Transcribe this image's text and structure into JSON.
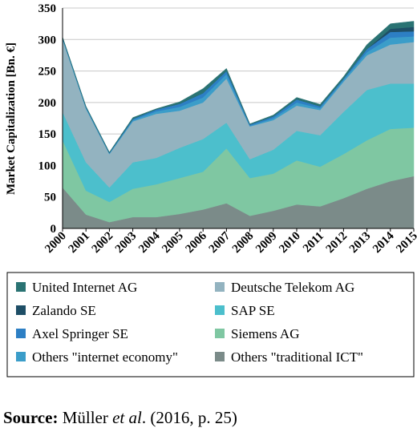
{
  "chart_data": {
    "type": "stacked-area",
    "y_label": "Market Capitalization [Bn. €]",
    "categories": [
      "2000",
      "2001",
      "2002",
      "2003",
      "2004",
      "2005",
      "2006",
      "2007",
      "2008",
      "2009",
      "2010",
      "2011",
      "2012",
      "2013",
      "2014",
      "2015"
    ],
    "ylim": [
      0,
      350
    ],
    "yticks": [
      0,
      50,
      100,
      150,
      200,
      250,
      300,
      350
    ],
    "grid": true,
    "series": [
      {
        "name": "Others \"traditional ICT\"",
        "color": "#7b8b89",
        "values": [
          65,
          22,
          10,
          18,
          18,
          23,
          30,
          40,
          20,
          28,
          38,
          35,
          48,
          63,
          75,
          83
        ]
      },
      {
        "name": "Siemens AG",
        "color": "#7fc7a2",
        "values": [
          75,
          38,
          32,
          45,
          52,
          57,
          60,
          87,
          60,
          59,
          70,
          63,
          70,
          77,
          83,
          77
        ]
      },
      {
        "name": "SAP SE",
        "color": "#4cbfcc",
        "values": [
          45,
          45,
          23,
          42,
          42,
          48,
          52,
          41,
          30,
          38,
          47,
          50,
          67,
          80,
          72,
          70
        ]
      },
      {
        "name": "Deutsche Telekom AG",
        "color": "#93b3c0",
        "values": [
          115,
          85,
          53,
          65,
          70,
          59,
          58,
          70,
          52,
          47,
          40,
          40,
          48,
          55,
          62,
          66
        ]
      },
      {
        "name": "Others \"internet economy\"",
        "color": "#3b9dc9",
        "values": [
          2,
          2,
          1,
          2,
          4,
          6,
          8,
          7,
          1,
          3,
          5,
          3,
          3,
          5,
          11,
          9
        ]
      },
      {
        "name": "Axel Springer SE",
        "color": "#2d7fc4",
        "values": [
          1,
          1,
          1,
          2,
          3,
          5,
          7,
          5,
          2,
          3,
          5,
          3,
          2,
          5,
          9,
          8
        ]
      },
      {
        "name": "Zalando SE",
        "color": "#1e4e66",
        "values": [
          0,
          0,
          0,
          0,
          0,
          0,
          0,
          0,
          0,
          0,
          0,
          0,
          0,
          0,
          5,
          7
        ]
      },
      {
        "name": "United Internet AG",
        "color": "#2a7373",
        "values": [
          1,
          1,
          1,
          2,
          1,
          3,
          7,
          4,
          1,
          2,
          3,
          3,
          3,
          7,
          8,
          9
        ]
      }
    ]
  },
  "source": {
    "label": "Source:",
    "parts": [
      "Müller ",
      "et al",
      ". (2016, p. 25)"
    ]
  }
}
